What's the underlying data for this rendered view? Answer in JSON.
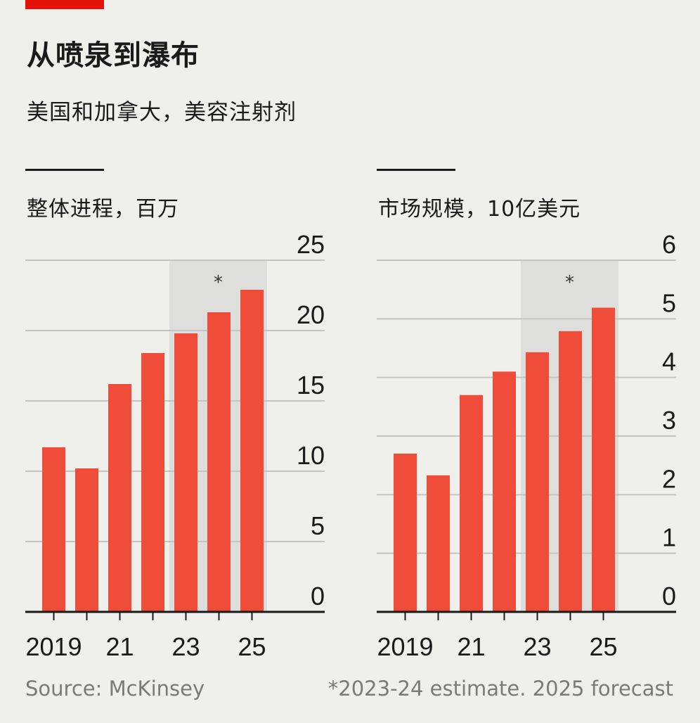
{
  "header": {
    "title": "从喷泉到瀑布",
    "subtitle": "美国和加拿大，美容注射剂"
  },
  "footer": {
    "source": "Source: McKinsey",
    "note": "*2023-24 estimate. 2025 forecast"
  },
  "colors": {
    "bar": "#f04c3a",
    "highlight_band": "#dededd",
    "gridline": "#c4c4c4",
    "axis": "#1a1a1a",
    "brand_tag": "#e3120b"
  },
  "chart_data": [
    {
      "type": "bar",
      "title": "整体进程，百万",
      "categories": [
        "2019",
        "2020",
        "2021",
        "2022",
        "2023",
        "2024",
        "2025"
      ],
      "x_tick_labels": [
        "2019",
        "",
        "21",
        "",
        "23",
        "",
        "25"
      ],
      "values": [
        11.7,
        10.2,
        16.2,
        18.4,
        19.8,
        21.3,
        22.9
      ],
      "ylim": [
        0,
        25
      ],
      "yticks": [
        0,
        5,
        10,
        15,
        20,
        25
      ],
      "y_axis_side": "right",
      "grid": true,
      "highlight": {
        "from": "2023",
        "to": "2025",
        "marker": "*"
      }
    },
    {
      "type": "bar",
      "title": "市场规模，10亿美元",
      "categories": [
        "2019",
        "2020",
        "2021",
        "2022",
        "2023",
        "2024",
        "2025"
      ],
      "x_tick_labels": [
        "2019",
        "",
        "21",
        "",
        "23",
        "",
        "25"
      ],
      "values": [
        2.7,
        2.33,
        3.7,
        4.1,
        4.43,
        4.79,
        5.19
      ],
      "ylim": [
        0,
        6
      ],
      "yticks": [
        0,
        1,
        2,
        3,
        4,
        5,
        6
      ],
      "y_axis_side": "right",
      "grid": true,
      "highlight": {
        "from": "2023",
        "to": "2025",
        "marker": "*"
      }
    }
  ]
}
